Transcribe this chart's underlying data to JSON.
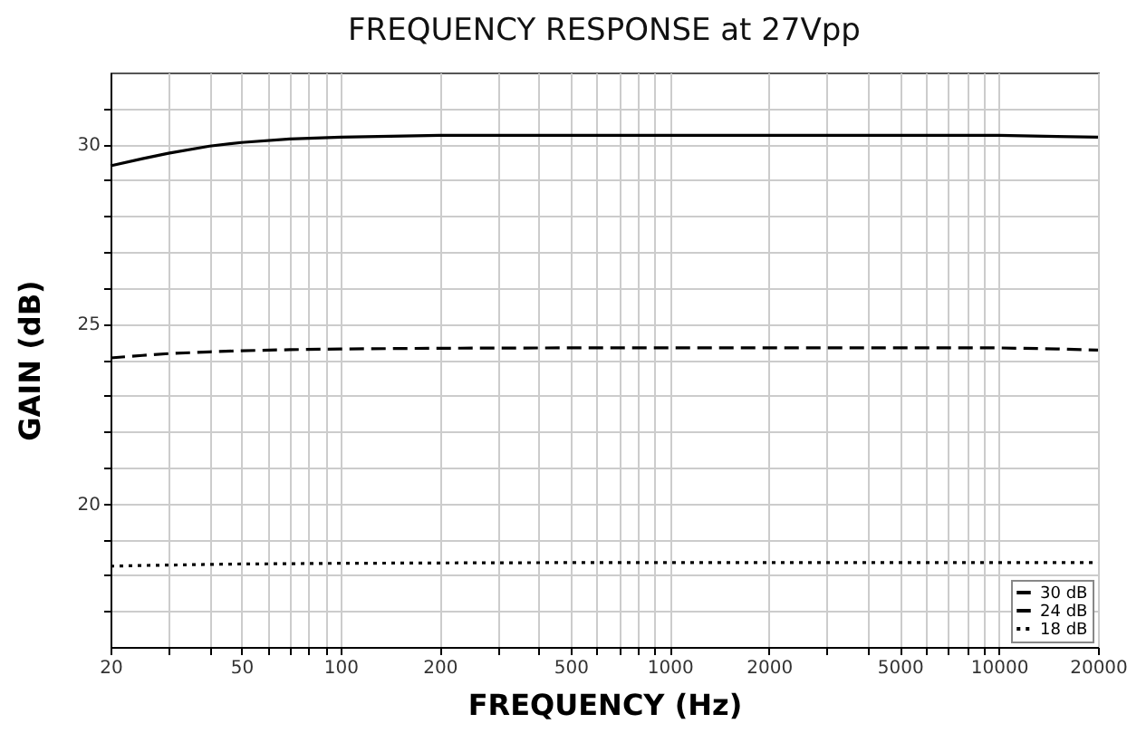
{
  "chart_data": {
    "type": "line",
    "title": "FREQUENCY RESPONSE at 27Vpp",
    "xlabel": "FREQUENCY (Hz)",
    "ylabel": "GAIN (dB)",
    "log": "x",
    "grid": true,
    "legend": "bottom right",
    "xlim": [
      20,
      20000
    ],
    "xticks": [
      20,
      {
        "value": 30,
        "label": null
      },
      {
        "value": 40,
        "label": null
      },
      50,
      {
        "value": 60,
        "label": null
      },
      {
        "value": 70,
        "label": null
      },
      {
        "value": 80,
        "label": null
      },
      {
        "value": 90,
        "label": null
      },
      100,
      200,
      {
        "value": 300,
        "label": null
      },
      {
        "value": 400,
        "label": null
      },
      500,
      {
        "value": 600,
        "label": null
      },
      {
        "value": 700,
        "label": null
      },
      {
        "value": 800,
        "label": null
      },
      {
        "value": 900,
        "label": null
      },
      1000,
      2000,
      {
        "value": 3000,
        "label": null
      },
      {
        "value": 4000,
        "label": null
      },
      5000,
      {
        "value": 6000,
        "label": null
      },
      {
        "value": 7000,
        "label": null
      },
      {
        "value": 8000,
        "label": null
      },
      {
        "value": 9000,
        "label": null
      },
      10000,
      20000
    ],
    "ylim": [
      16,
      32
    ],
    "yticks": [
      {
        "value": 17,
        "label": null
      },
      {
        "value": 18,
        "label": null
      },
      {
        "value": 19,
        "label": null
      },
      20,
      {
        "value": 21,
        "label": null
      },
      {
        "value": 22,
        "label": null
      },
      {
        "value": 23,
        "label": null
      },
      {
        "value": 24,
        "label": null
      },
      25,
      {
        "value": 26,
        "label": null
      },
      {
        "value": 27,
        "label": null
      },
      {
        "value": 28,
        "label": null
      },
      {
        "value": 29,
        "label": null
      },
      30,
      {
        "value": 31,
        "label": null
      }
    ],
    "x": [
      20,
      25,
      30,
      40,
      50,
      70,
      100,
      200,
      500,
      1000,
      2000,
      5000,
      10000,
      15000,
      20000
    ],
    "series": [
      {
        "name": "30 dB",
        "color": "#000000",
        "line_style": "solid",
        "values": [
          29.4,
          29.6,
          29.75,
          29.95,
          30.05,
          30.15,
          30.2,
          30.25,
          30.25,
          30.25,
          30.25,
          30.25,
          30.25,
          30.22,
          30.2
        ]
      },
      {
        "name": "24 dB",
        "color": "#000000",
        "line_style": "dashed",
        "values": [
          24.05,
          24.12,
          24.17,
          24.22,
          24.25,
          24.28,
          24.3,
          24.32,
          24.33,
          24.33,
          24.33,
          24.33,
          24.33,
          24.3,
          24.27
        ]
      },
      {
        "name": "18 dB",
        "color": "#000000",
        "line_style": "dotted",
        "values": [
          18.25,
          18.27,
          18.28,
          18.3,
          18.31,
          18.32,
          18.33,
          18.34,
          18.35,
          18.35,
          18.35,
          18.35,
          18.35,
          18.35,
          18.35
        ]
      }
    ]
  }
}
